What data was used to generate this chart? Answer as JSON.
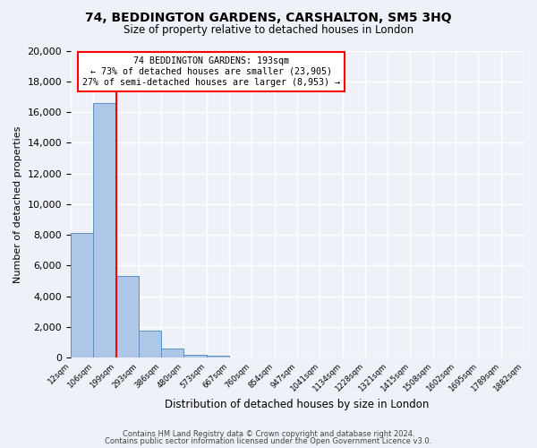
{
  "title": "74, BEDDINGTON GARDENS, CARSHALTON, SM5 3HQ",
  "subtitle": "Size of property relative to detached houses in London",
  "xlabel": "Distribution of detached houses by size in London",
  "ylabel": "Number of detached properties",
  "bar_values": [
    8100,
    16600,
    5300,
    1750,
    600,
    200,
    100,
    0,
    0,
    0,
    0,
    0,
    0,
    0,
    0,
    0,
    0,
    0,
    0,
    0
  ],
  "bin_labels": [
    "12sqm",
    "106sqm",
    "199sqm",
    "293sqm",
    "386sqm",
    "480sqm",
    "573sqm",
    "667sqm",
    "760sqm",
    "854sqm",
    "947sqm",
    "1041sqm",
    "1134sqm",
    "1228sqm",
    "1321sqm",
    "1415sqm",
    "1508sqm",
    "1602sqm",
    "1695sqm",
    "1789sqm",
    "1882sqm"
  ],
  "bar_color": "#aec6e8",
  "bar_edge_color": "#5a8fc2",
  "vline_x": 2,
  "vline_color": "#ff0000",
  "annotation_line1": "74 BEDDINGTON GARDENS: 193sqm",
  "annotation_line2": "← 73% of detached houses are smaller (23,905)",
  "annotation_line3": "27% of semi-detached houses are larger (8,953) →",
  "annotation_box_color": "#ffffff",
  "annotation_box_edge": "#ff0000",
  "ylim": [
    0,
    20000
  ],
  "yticks": [
    0,
    2000,
    4000,
    6000,
    8000,
    10000,
    12000,
    14000,
    16000,
    18000,
    20000
  ],
  "footer_line1": "Contains HM Land Registry data © Crown copyright and database right 2024.",
  "footer_line2": "Contains public sector information licensed under the Open Government Licence v3.0.",
  "bg_color": "#eef2f8",
  "grid_color": "#ffffff"
}
